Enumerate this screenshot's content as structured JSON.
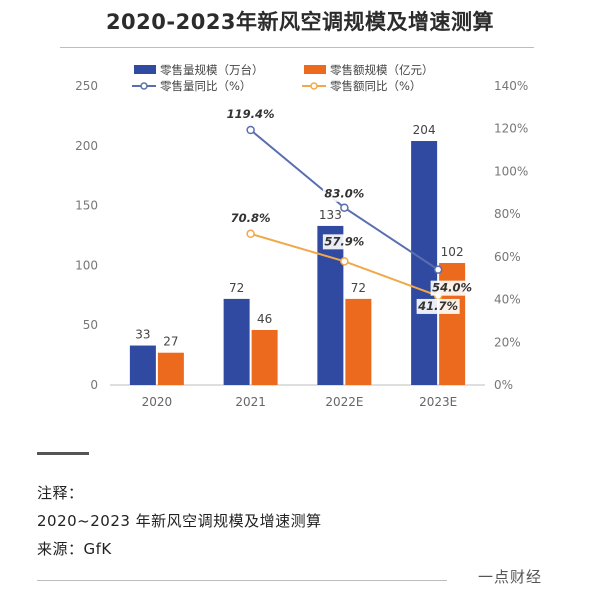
{
  "title": "2020-2023年新风空调规模及增速测算",
  "notes": {
    "label": "注释：",
    "line": "2020~2023 年新风空调规模及增速测算",
    "source": "来源：GfK"
  },
  "brand": "一点财经",
  "colors": {
    "volume": "#2f4aa0",
    "sales": "#ec6a1d",
    "volume_line": "#5a6fb0",
    "sales_line": "#f0a94a"
  },
  "chart_data": {
    "type": "bar",
    "categories": [
      "2020",
      "2021",
      "2022E",
      "2023E"
    ],
    "series": [
      {
        "name": "零售量规模（万台）",
        "axis": "left",
        "kind": "bar",
        "values": [
          33,
          72,
          133,
          204
        ]
      },
      {
        "name": "零售额规模（亿元）",
        "axis": "left",
        "kind": "bar",
        "values": [
          27,
          46,
          72,
          102
        ]
      },
      {
        "name": "零售量同比（%）",
        "axis": "right",
        "kind": "line",
        "values": [
          null,
          119.4,
          83.0,
          54.0
        ],
        "labels": [
          "",
          "119.4%",
          "83.0%",
          "54.0%"
        ]
      },
      {
        "name": "零售额同比（%）",
        "axis": "right",
        "kind": "line",
        "values": [
          null,
          70.8,
          57.9,
          41.7
        ],
        "labels": [
          "",
          "70.8%",
          "57.9%",
          "41.7%"
        ]
      }
    ],
    "ylim": [
      0,
      250
    ],
    "yticks": [
      "0",
      "50",
      "100",
      "150",
      "200",
      "250"
    ],
    "y2lim": [
      0,
      140
    ],
    "y2ticks": [
      "0%",
      "20%",
      "40%",
      "60%",
      "80%",
      "100%",
      "120%",
      "140%"
    ],
    "legend_position": "top",
    "grid": false
  }
}
